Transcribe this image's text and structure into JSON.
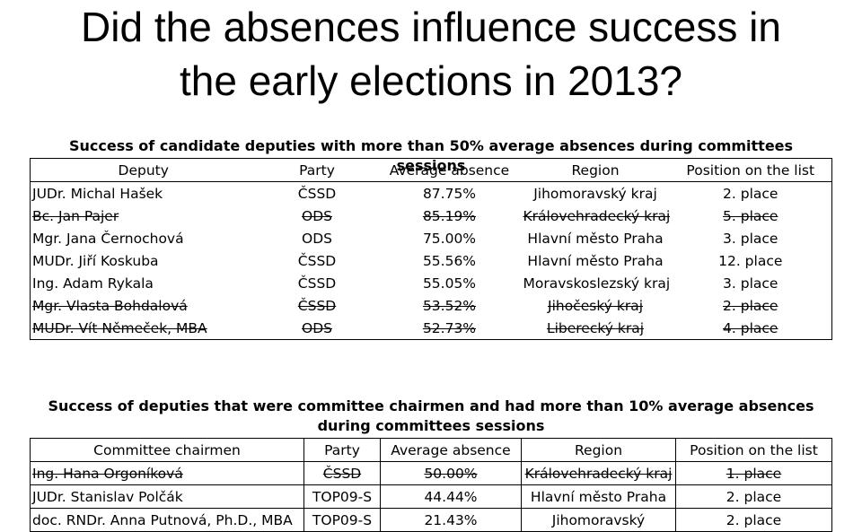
{
  "title_line1": "Did the absences influence success in",
  "title_line2": "the early elections in 2013?",
  "table1": {
    "caption": "Success of candidate deputies with more than 50% average absences during committees sessions",
    "headers": [
      "Deputy",
      "Party",
      "Average absence",
      "Region",
      "Position on the list"
    ],
    "rows": [
      {
        "deputy": "JUDr. Michal Hašek",
        "party": "ČSSD",
        "absence": "87.75%",
        "region": "Jihomoravský kraj",
        "position": "2. place",
        "struck": false
      },
      {
        "deputy": "Bc. Jan Pajer",
        "party": "ODS",
        "absence": "85.19%",
        "region": "Královehradecký kraj",
        "position": "5. place",
        "struck": true
      },
      {
        "deputy": "Mgr. Jana Černochová",
        "party": "ODS",
        "absence": "75.00%",
        "region": "Hlavní město Praha",
        "position": "3. place",
        "struck": false
      },
      {
        "deputy": "MUDr. Jiří Koskuba",
        "party": "ČSSD",
        "absence": "55.56%",
        "region": "Hlavní město Praha",
        "position": "12. place",
        "struck": false
      },
      {
        "deputy": "Ing. Adam Rykala",
        "party": "ČSSD",
        "absence": "55.05%",
        "region": "Moravskoslezský kraj",
        "position": "3. place",
        "struck": false
      },
      {
        "deputy": "Mgr. Vlasta Bohdalová",
        "party": "ČSSD",
        "absence": "53.52%",
        "region": "Jihočeský kraj",
        "position": "2. place",
        "struck": true
      },
      {
        "deputy": "MUDr. Vít Němeček, MBA",
        "party": "ODS",
        "absence": "52.73%",
        "region": "Liberecký kraj",
        "position": "4. place",
        "struck": true
      }
    ]
  },
  "table2": {
    "caption": "Success of deputies that were committee chairmen and had more than 10% average absences during committees sessions",
    "headers": [
      "Committee chairmen",
      "Party",
      "Average absence",
      "Region",
      "Position on the list"
    ],
    "rows": [
      {
        "deputy": "Ing. Hana Orgoníková",
        "party": "ČSSD",
        "absence": "50.00%",
        "region": "Královehradecký kraj",
        "position": "1. place",
        "struck": true
      },
      {
        "deputy": "JUDr. Stanislav Polčák",
        "party": "TOP09-S",
        "absence": "44.44%",
        "region": "Hlavní město Praha",
        "position": "2. place",
        "struck": false
      },
      {
        "deputy": "doc. RNDr. Anna Putnová, Ph.D., MBA",
        "party": "TOP09-S",
        "absence": "21.43%",
        "region": "Jihomoravský",
        "position": "2. place",
        "struck": false
      }
    ]
  }
}
